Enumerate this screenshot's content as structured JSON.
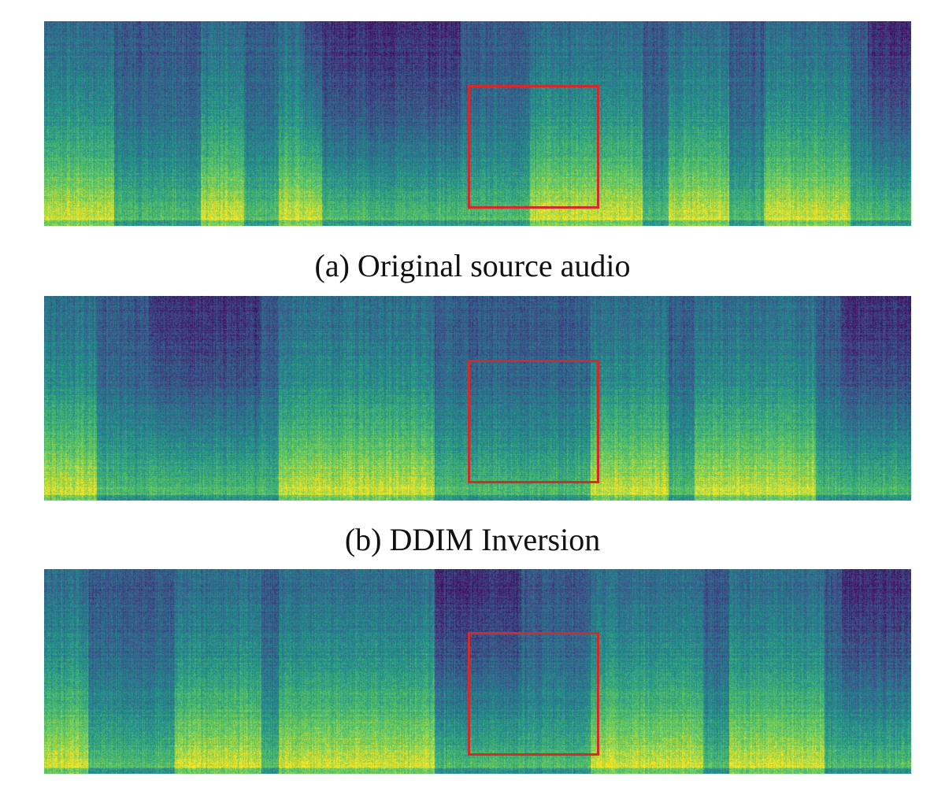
{
  "figure": {
    "panels": [
      {
        "id": "a",
        "caption": "(a) Original source audio",
        "seed": 11,
        "bright_bands": [
          [
            0.0,
            0.08
          ],
          [
            0.18,
            0.23
          ],
          [
            0.27,
            0.32
          ],
          [
            0.56,
            0.69
          ],
          [
            0.72,
            0.79
          ],
          [
            0.83,
            0.93
          ]
        ],
        "quiet": [
          [
            0.3,
            0.48
          ],
          [
            0.95,
            1.0
          ]
        ]
      },
      {
        "id": "b",
        "caption": "(b) DDIM Inversion",
        "seed": 29,
        "bright_bands": [
          [
            0.0,
            0.06
          ],
          [
            0.27,
            0.45
          ],
          [
            0.63,
            0.72
          ],
          [
            0.75,
            0.89
          ]
        ],
        "quiet": [
          [
            0.12,
            0.25
          ],
          [
            0.92,
            1.0
          ]
        ]
      },
      {
        "id": "c",
        "caption": "",
        "seed": 47,
        "bright_bands": [
          [
            0.0,
            0.05
          ],
          [
            0.15,
            0.25
          ],
          [
            0.27,
            0.45
          ],
          [
            0.63,
            0.76
          ],
          [
            0.79,
            0.9
          ]
        ],
        "quiet": [
          [
            0.45,
            0.55
          ],
          [
            0.92,
            1.0
          ]
        ]
      }
    ],
    "highlight_color": "#d42a2a"
  }
}
